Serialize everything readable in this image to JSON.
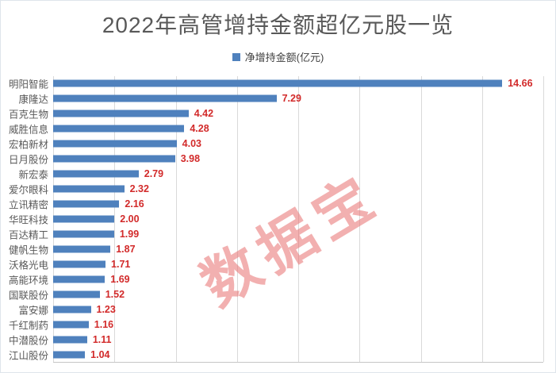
{
  "title": "2022年高管增持金额超亿元股一览",
  "legend": {
    "label": "净增持金额(亿元)"
  },
  "watermark": "数据宝",
  "colors": {
    "bar": "#4f81bd",
    "value_label": "#d22a2a",
    "title": "#595959",
    "category_label": "#595959",
    "gridline": "#d9d9d9",
    "axis_line": "#c6c6c6",
    "watermark": "#e77070"
  },
  "chart_data": {
    "type": "bar",
    "orientation": "horizontal",
    "title": "2022年高管增持金额超亿元股一览",
    "legend_entries": [
      "净增持金额(亿元)"
    ],
    "legend_position": "top",
    "xlabel": "",
    "ylabel": "",
    "xlim": [
      0,
      16
    ],
    "grid": true,
    "grid_interval": 2,
    "value_labels_shown": true,
    "value_label_decimals": 2,
    "categories": [
      "明阳智能",
      "康隆达",
      "百克生物",
      "威胜信息",
      "宏柏新材",
      "日月股份",
      "新宏泰",
      "爱尔眼科",
      "立讯精密",
      "华旺科技",
      "百达精工",
      "健帆生物",
      "沃格光电",
      "高能环境",
      "国联股份",
      "富安娜",
      "千红制药",
      "中潜股份",
      "江山股份"
    ],
    "values": [
      14.66,
      7.29,
      4.42,
      4.28,
      4.03,
      3.98,
      2.79,
      2.32,
      2.16,
      2.0,
      1.99,
      1.87,
      1.71,
      1.69,
      1.52,
      1.23,
      1.16,
      1.11,
      1.04
    ]
  }
}
